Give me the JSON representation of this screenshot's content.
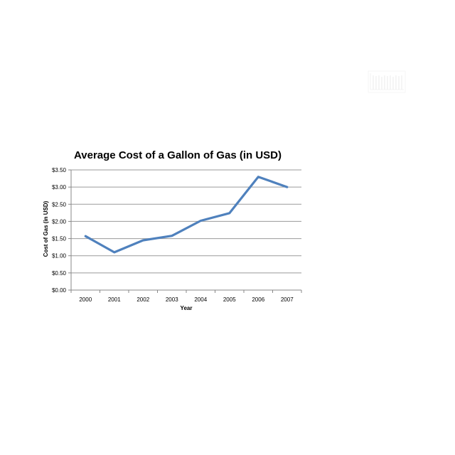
{
  "chart_data": {
    "type": "line",
    "title": "Average Cost of a Gallon of Gas (in USD)",
    "xlabel": "Year",
    "ylabel": "Cost of Gas (in USD)",
    "categories": [
      "2000",
      "2001",
      "2002",
      "2003",
      "2004",
      "2005",
      "2006",
      "2007"
    ],
    "series": [
      {
        "values": [
          1.57,
          1.1,
          1.45,
          1.58,
          2.02,
          2.24,
          3.3,
          3.0
        ]
      }
    ],
    "ylim": [
      0,
      3.5
    ],
    "yticks": [
      0,
      0.5,
      1,
      1.5,
      2,
      2.5,
      3,
      3.5
    ],
    "ytick_labels": [
      "$0.00",
      "$0.50",
      "$1.00",
      "$1.50",
      "$2.00",
      "$2.50",
      "$3.00",
      "$3.50"
    ],
    "grid": true,
    "legend": "none",
    "colors": {
      "line": "#4f81bd",
      "grid": "#9a9a9a",
      "axis": "#888888"
    }
  }
}
